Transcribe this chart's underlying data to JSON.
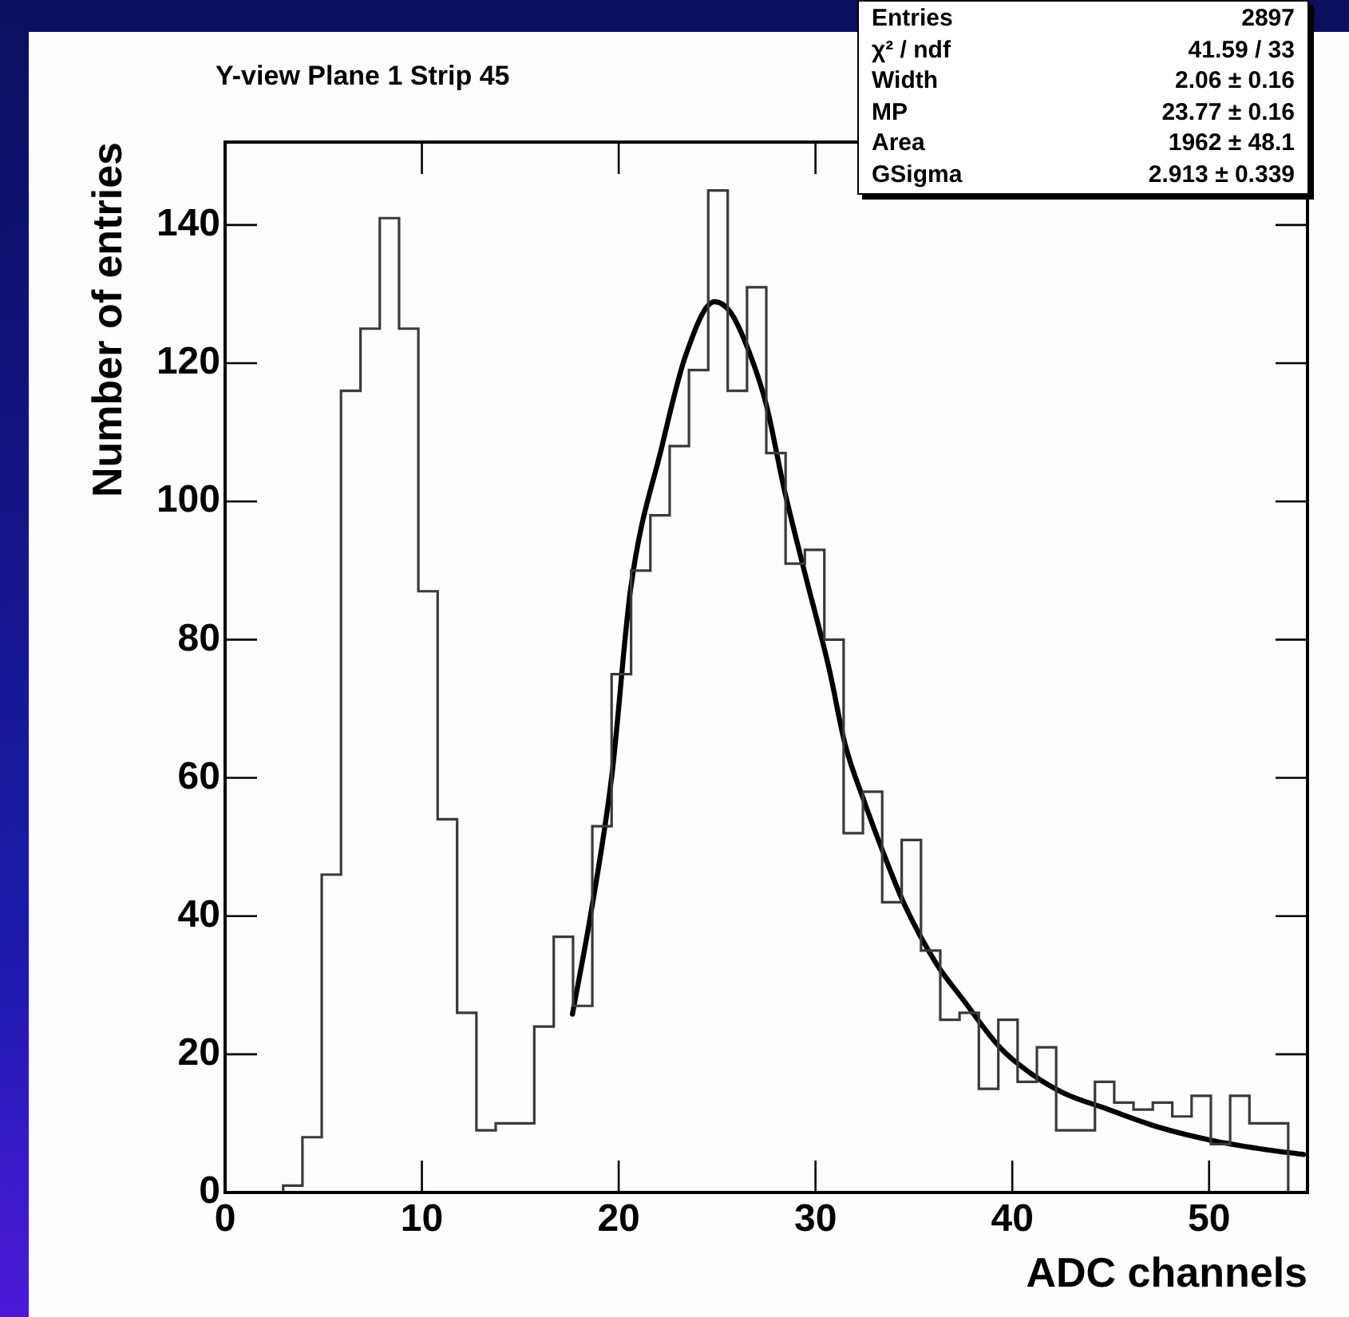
{
  "chart_data": {
    "type": "histogram",
    "title": "Y-view Plane 1 Strip 45",
    "xlabel": "ADC channels",
    "ylabel": "Number of entries",
    "xlim": [
      0,
      55
    ],
    "xticks": [
      0,
      10,
      20,
      30,
      40,
      50
    ],
    "ylim": [
      0,
      152
    ],
    "yticks": [
      0,
      20,
      40,
      60,
      80,
      100,
      120,
      140
    ],
    "series": [
      {
        "type": "histogram",
        "color": "#3a3a3a",
        "bins": [
          0,
          0.98,
          1.96,
          2.95,
          3.93,
          4.91,
          5.89,
          6.88,
          7.86,
          8.84,
          9.82,
          10.8,
          11.79,
          12.77,
          13.75,
          14.73,
          15.71,
          16.7,
          17.68,
          18.66,
          19.64,
          20.63,
          21.61,
          22.59,
          23.57,
          24.55,
          25.54,
          26.52,
          27.5,
          28.48,
          29.46,
          30.45,
          31.43,
          32.41,
          33.39,
          34.38,
          35.36,
          36.34,
          37.32,
          38.3,
          39.29,
          40.27,
          41.25,
          42.23,
          43.21,
          44.2,
          45.18,
          46.16,
          47.14,
          48.13,
          49.11,
          50.09,
          51.07,
          52.05,
          53.04,
          54.02,
          55
        ],
        "values": [
          0,
          0,
          0,
          1,
          8,
          46,
          116,
          125,
          141,
          125,
          87,
          54,
          26,
          9,
          10,
          10,
          24,
          37,
          27,
          53,
          75,
          90,
          98,
          108,
          119,
          145,
          116,
          131,
          107,
          91,
          93,
          80,
          52,
          58,
          42,
          51,
          35,
          25,
          26,
          15,
          25,
          16,
          21,
          9,
          9,
          16,
          13,
          12,
          13,
          11,
          14,
          7,
          14,
          10,
          10,
          0
        ]
      },
      {
        "type": "line",
        "color": "#000000",
        "x": [
          17.65,
          18.57,
          19.65,
          20.6,
          22.2,
          23.4,
          24.87,
          25.7,
          26.7,
          27.5,
          28.4,
          29.4,
          30.7,
          31.5,
          32.5,
          33.4,
          34.5,
          36.1,
          37.5,
          39.4,
          41.0,
          42.6,
          44.8,
          47.5,
          50.2,
          52.9,
          54.8
        ],
        "values": [
          25.8,
          40.1,
          60.3,
          87.2,
          108,
          121.1,
          128.9,
          127.3,
          121.1,
          114,
          101.9,
          90.3,
          75.7,
          64.9,
          56.4,
          49.5,
          41.8,
          33.3,
          27.9,
          20.9,
          17.1,
          14.4,
          12.1,
          9.4,
          7.5,
          6.2,
          5.5
        ]
      }
    ],
    "annotations": [
      "Entries",
      "2897",
      "χ² / ndf",
      "41.59 / 33",
      "Width",
      "2.06 ± 0.16",
      "MP",
      "23.77 ± 0.16",
      "Area",
      "1962 ± 48.1",
      "GSigma",
      "2.913 ± 0.339"
    ]
  }
}
